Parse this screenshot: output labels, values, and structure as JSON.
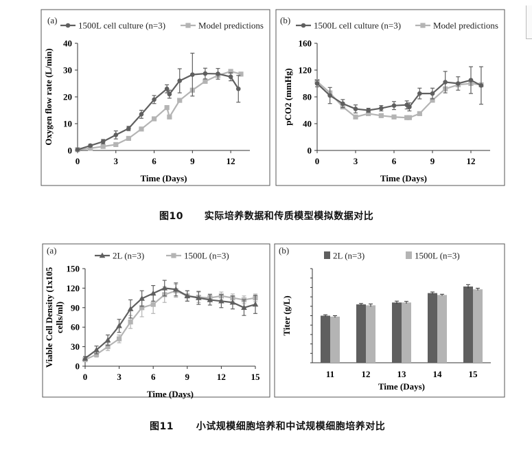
{
  "captions": {
    "fig10_num": "图10",
    "fig10_text": "实际培养数据和传质模型模拟数据对比",
    "fig11_num": "图11",
    "fig11_text": "小试规模细胞培养和中试规模细胞培养对比"
  },
  "colors": {
    "dark": "#5f5f5f",
    "light": "#b4b4b4"
  },
  "chart_data": [
    {
      "id": "fig10a",
      "panel_label": "(a)",
      "type": "line",
      "xlabel": "Time (Days)",
      "ylabel": "Oxygen flow rate (L/min)",
      "xlim": [
        0,
        13.5
      ],
      "ylim": [
        0,
        40
      ],
      "xticks": [
        0,
        3,
        6,
        9,
        12
      ],
      "yticks": [
        0,
        10,
        20,
        30,
        40
      ],
      "series": [
        {
          "name": "1500L cell culture (n=3)",
          "marker": "circle",
          "color": "#5f5f5f",
          "x": [
            0,
            1,
            2,
            3,
            4,
            5,
            6,
            7,
            7.2,
            8,
            9,
            10,
            11,
            12,
            12.6
          ],
          "y": [
            0.3,
            1.8,
            3.3,
            5.8,
            8.2,
            13.5,
            19,
            23,
            21,
            26,
            28.3,
            28.7,
            28.6,
            27.5,
            23
          ],
          "err": [
            0.3,
            0.5,
            0.8,
            1.5,
            0.8,
            1.5,
            1.5,
            1.5,
            1.5,
            4.5,
            8,
            2,
            2,
            1.5,
            5
          ]
        },
        {
          "name": "Model predictions",
          "marker": "square",
          "color": "#b4b4b4",
          "x": [
            0,
            1,
            2,
            3,
            4,
            5,
            6,
            7,
            7.2,
            8,
            9,
            10,
            11,
            12,
            12.8
          ],
          "y": [
            0.3,
            0.8,
            1.5,
            2.2,
            4.5,
            8,
            11.8,
            16,
            12.5,
            18.7,
            22.5,
            25.8,
            28,
            29.5,
            28.5
          ]
        }
      ]
    },
    {
      "id": "fig10b",
      "panel_label": "(b)",
      "type": "line",
      "xlabel": "Time (Days)",
      "ylabel": "pCO2 (mmHg)",
      "xlim": [
        0,
        13.5
      ],
      "ylim": [
        0,
        160
      ],
      "xticks": [
        0,
        3,
        6,
        9,
        12
      ],
      "yticks": [
        0,
        40,
        80,
        120,
        160
      ],
      "series": [
        {
          "name": "1500L cell culture (n=3)",
          "marker": "circle",
          "color": "#5f5f5f",
          "x": [
            0,
            1,
            2,
            3,
            4,
            5,
            6,
            7,
            7.2,
            8,
            9,
            10,
            11,
            12,
            12.8
          ],
          "y": [
            100,
            82,
            70,
            62,
            60,
            63,
            67,
            68,
            65,
            85,
            85,
            102,
            100,
            105,
            97
          ],
          "err": [
            5,
            12,
            6,
            6,
            3,
            4,
            6,
            6,
            6,
            8,
            8,
            16,
            10,
            20,
            28
          ]
        },
        {
          "name": "Model predictions",
          "marker": "square",
          "color": "#b4b4b4",
          "x": [
            0,
            1,
            2,
            3,
            4,
            5,
            6,
            7,
            7.2,
            8,
            9,
            10,
            11,
            12,
            12.8
          ],
          "y": [
            103,
            86,
            65,
            50,
            55,
            52,
            50,
            49,
            49,
            55,
            75,
            92,
            98,
            100,
            98
          ]
        }
      ]
    },
    {
      "id": "fig11a",
      "panel_label": "(a)",
      "type": "line",
      "xlabel": "Time (Days)",
      "ylabel": "Viable Cell Density (1x105 cells/ml)",
      "xlim": [
        0,
        15
      ],
      "ylim": [
        0,
        150
      ],
      "xticks": [
        0,
        3,
        6,
        9,
        12,
        15
      ],
      "yticks": [
        0,
        30,
        60,
        90,
        120,
        150
      ],
      "series": [
        {
          "name": "2L (n=3)",
          "marker": "triangle",
          "color": "#5f5f5f",
          "x": [
            0,
            1,
            2,
            3,
            4,
            5,
            6,
            7,
            8,
            9,
            10,
            11,
            12,
            13,
            14,
            15
          ],
          "y": [
            12,
            25,
            40,
            62,
            88,
            104,
            112,
            120,
            118,
            108,
            105,
            102,
            100,
            98,
            90,
            95
          ],
          "err": [
            3,
            6,
            8,
            10,
            14,
            12,
            12,
            12,
            10,
            8,
            10,
            8,
            10,
            10,
            12,
            14
          ]
        },
        {
          "name": "1500L (n=3)",
          "marker": "square",
          "color": "#b4b4b4",
          "x": [
            0,
            1,
            2,
            3,
            4,
            5,
            6,
            7,
            8,
            9,
            10,
            11,
            12,
            13,
            14,
            15
          ],
          "y": [
            10,
            18,
            30,
            42,
            68,
            90,
            95,
            110,
            116,
            108,
            106,
            105,
            108,
            105,
            102,
            105
          ],
          "err": [
            2,
            4,
            6,
            6,
            10,
            14,
            14,
            12,
            10,
            8,
            8,
            6,
            6,
            6,
            6,
            6
          ]
        }
      ]
    },
    {
      "id": "fig11b",
      "panel_label": "(b)",
      "type": "bar",
      "xlabel": "Time (Days)",
      "ylabel": "Titer (g/L)",
      "categories": [
        "11",
        "12",
        "13",
        "14",
        "15"
      ],
      "ylim": [
        0,
        1
      ],
      "series": [
        {
          "name": "2L (n=3)",
          "color": "#5f5f5f",
          "values": [
            0.5,
            0.62,
            0.64,
            0.74,
            0.81
          ],
          "err": [
            0.01,
            0.01,
            0.015,
            0.012,
            0.02
          ]
        },
        {
          "name": "1500L (n=3)",
          "color": "#b4b4b4",
          "values": [
            0.49,
            0.61,
            0.64,
            0.72,
            0.78
          ],
          "err": [
            0.01,
            0.015,
            0.012,
            0.008,
            0.012
          ]
        }
      ]
    }
  ]
}
